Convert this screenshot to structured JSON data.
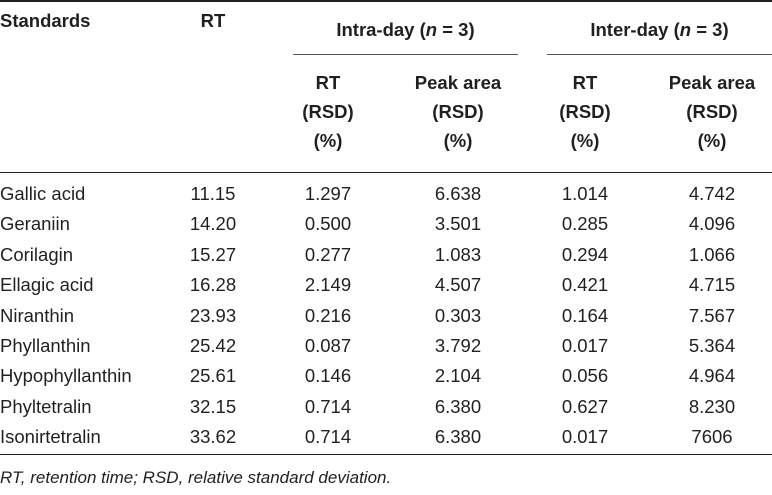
{
  "table": {
    "header": {
      "standards": "Standards",
      "rt": "RT",
      "intra_day": {
        "prefix": "Intra-day (",
        "n": "n",
        "suffix": " = 3)"
      },
      "inter_day": {
        "prefix": "Inter-day (",
        "n": "n",
        "suffix": " = 3)"
      },
      "sub": {
        "rt_rsd": [
          "RT",
          "(RSD)",
          "(%)"
        ],
        "peak_rsd": [
          "Peak area",
          "(RSD)",
          "(%)"
        ]
      }
    },
    "rows": [
      {
        "name": "Gallic acid",
        "rt": "11.15",
        "intra_rt": "1.297",
        "intra_peak": "6.638",
        "inter_rt": "1.014",
        "inter_peak": "4.742"
      },
      {
        "name": "Geraniin",
        "rt": "14.20",
        "intra_rt": "0.500",
        "intra_peak": "3.501",
        "inter_rt": "0.285",
        "inter_peak": "4.096"
      },
      {
        "name": "Corilagin",
        "rt": "15.27",
        "intra_rt": "0.277",
        "intra_peak": "1.083",
        "inter_rt": "0.294",
        "inter_peak": "1.066"
      },
      {
        "name": "Ellagic acid",
        "rt": "16.28",
        "intra_rt": "2.149",
        "intra_peak": "4.507",
        "inter_rt": "0.421",
        "inter_peak": "4.715"
      },
      {
        "name": "Niranthin",
        "rt": "23.93",
        "intra_rt": "0.216",
        "intra_peak": "0.303",
        "inter_rt": "0.164",
        "inter_peak": "7.567"
      },
      {
        "name": "Phyllanthin",
        "rt": "25.42",
        "intra_rt": "0.087",
        "intra_peak": "3.792",
        "inter_rt": "0.017",
        "inter_peak": "5.364"
      },
      {
        "name": "Hypophyllanthin",
        "rt": "25.61",
        "intra_rt": "0.146",
        "intra_peak": "2.104",
        "inter_rt": "0.056",
        "inter_peak": "4.964"
      },
      {
        "name": "Phyltetralin",
        "rt": "32.15",
        "intra_rt": "0.714",
        "intra_peak": "6.380",
        "inter_rt": "0.627",
        "inter_peak": "8.230"
      },
      {
        "name": "Isonirtetralin",
        "rt": "33.62",
        "intra_rt": "0.714",
        "intra_peak": "6.380",
        "inter_rt": "0.017",
        "inter_peak": "7606"
      }
    ],
    "footnote": "RT, retention time; RSD, relative standard deviation."
  }
}
